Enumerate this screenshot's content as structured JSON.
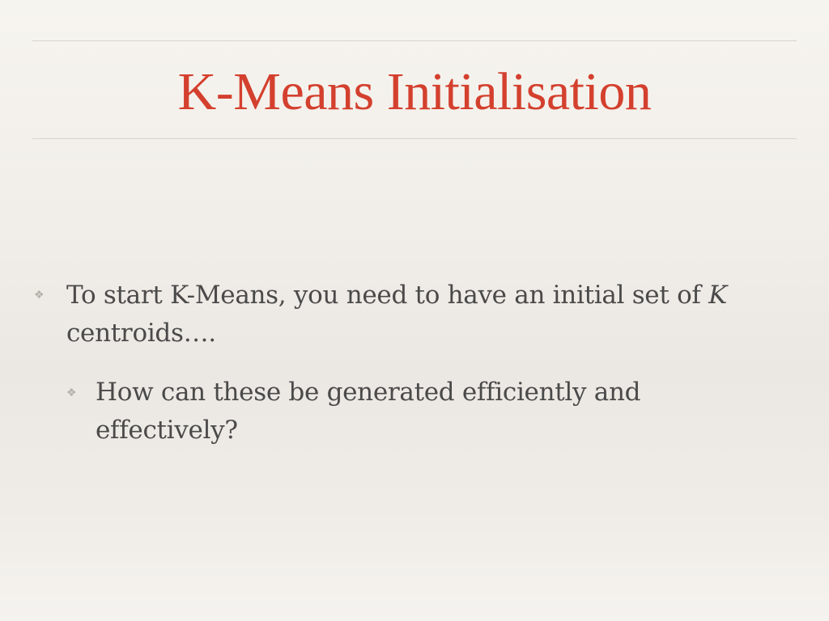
{
  "slide": {
    "title": "K-Means Initialisation",
    "bullets": [
      {
        "marker_icon": "diamond-flower-bullet-icon",
        "text": "To start K-Means, you need to have an initial set of ",
        "emphasis": "K",
        "continuation": "centroids…."
      },
      {
        "marker_icon": "diamond-flower-bullet-icon",
        "text": "How can these be generated efficiently and effectively?"
      }
    ],
    "colors": {
      "title": "#d4402e",
      "body_text": "#4a4a4a",
      "rule": "#d6d2cb"
    }
  }
}
